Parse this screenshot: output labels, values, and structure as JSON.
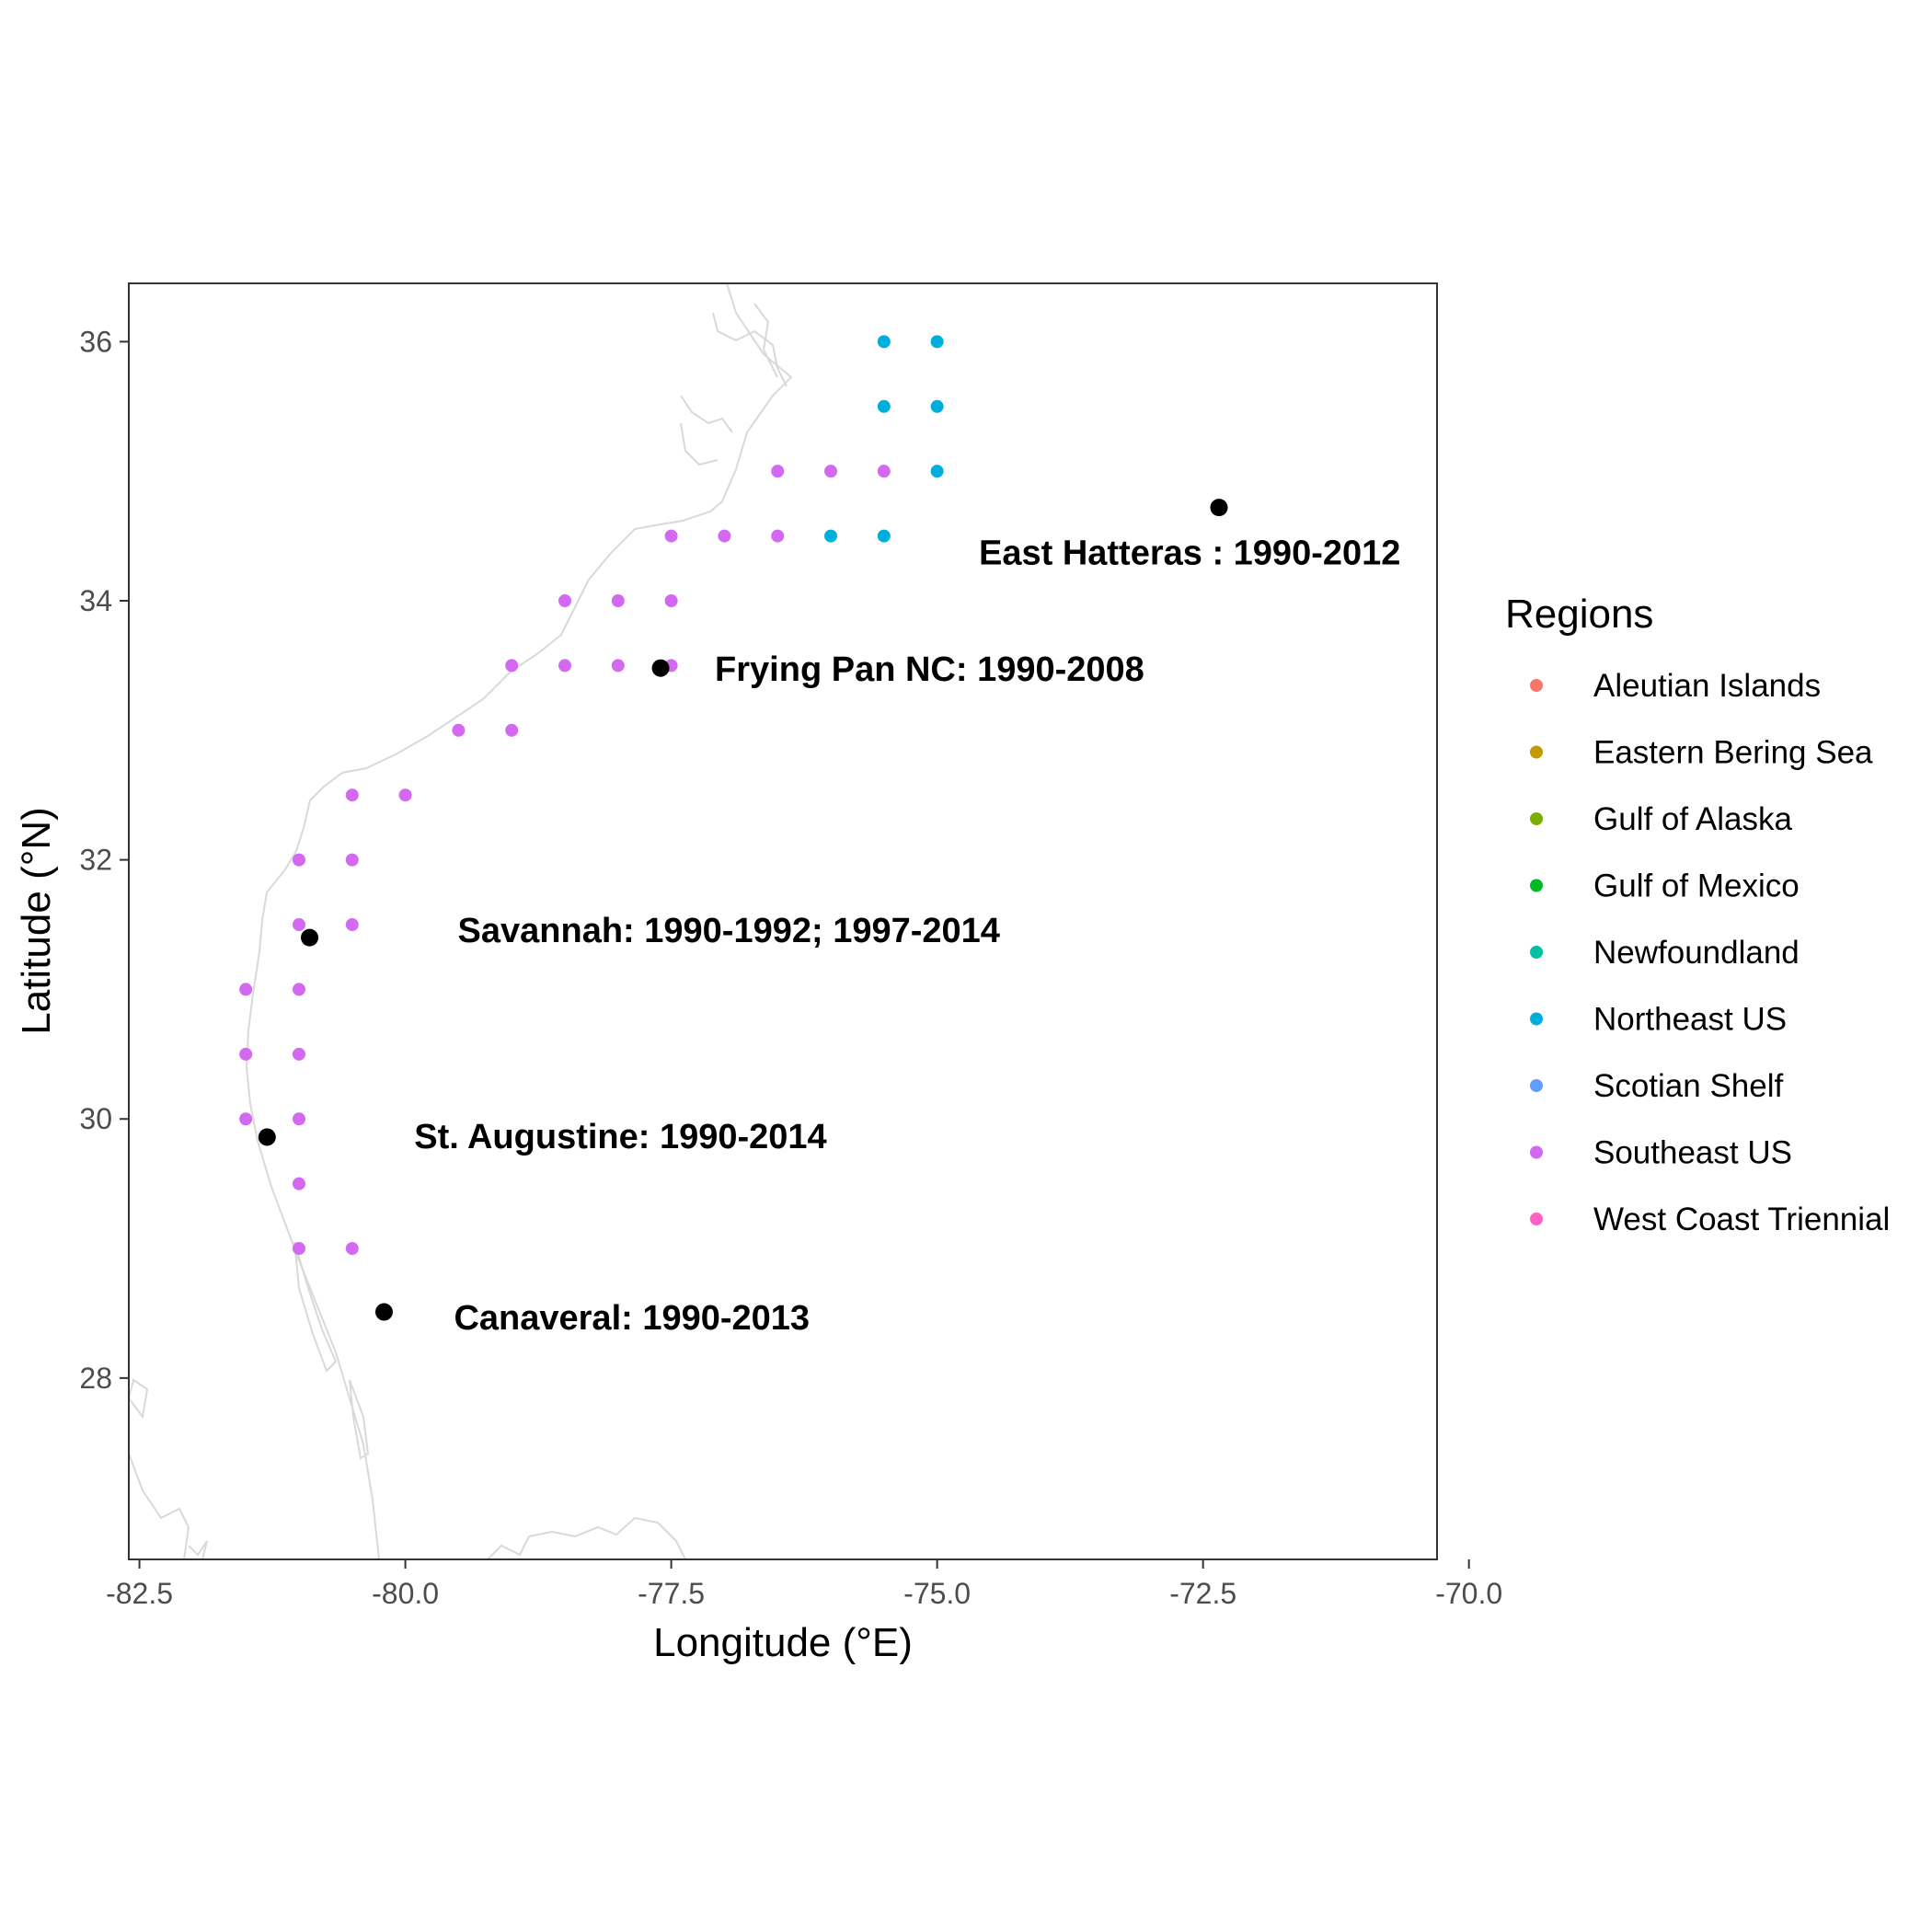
{
  "chart_data": {
    "type": "scatter",
    "xlabel": "Longitude (°E)",
    "ylabel": "Latitude (°N)",
    "xlim": [
      -82.6,
      -70.3
    ],
    "ylim": [
      26.6,
      36.45
    ],
    "x_ticks": [
      -82.5,
      -80.0,
      -77.5,
      -75.0,
      -72.5,
      -70.0
    ],
    "x_tick_labels": [
      "-82.5",
      "-80.0",
      "-77.5",
      "-75.0",
      "-72.5",
      "-70.0"
    ],
    "y_ticks": [
      28,
      30,
      32,
      34,
      36
    ],
    "y_tick_labels": [
      "28",
      "30",
      "32",
      "34",
      "36"
    ],
    "grid": false,
    "legend": {
      "title": "Regions",
      "placement": "right",
      "entries": [
        {
          "name": "Aleutian Islands",
          "color": "#F8766D"
        },
        {
          "name": "Eastern Bering Sea",
          "color": "#C49A00"
        },
        {
          "name": "Gulf of Alaska",
          "color": "#7CAE00"
        },
        {
          "name": "Gulf of Mexico",
          "color": "#00B928"
        },
        {
          "name": "Newfoundland",
          "color": "#00BFA4"
        },
        {
          "name": "Northeast US",
          "color": "#00AEDB"
        },
        {
          "name": "Scotian Shelf",
          "color": "#619CFF"
        },
        {
          "name": "Southeast US",
          "color": "#D369F0"
        },
        {
          "name": "West Coast Triennial",
          "color": "#FF61C3"
        }
      ]
    },
    "series": [
      {
        "name": "Northeast US",
        "color": "#00AEDB",
        "points": [
          [
            -75.5,
            36.0
          ],
          [
            -75.0,
            36.0
          ],
          [
            -75.5,
            35.5
          ],
          [
            -75.0,
            35.5
          ],
          [
            -75.0,
            35.0
          ],
          [
            -76.0,
            34.5
          ],
          [
            -75.5,
            34.5
          ]
        ]
      },
      {
        "name": "Southeast US",
        "color": "#D369F0",
        "points": [
          [
            -76.5,
            35.0
          ],
          [
            -76.0,
            35.0
          ],
          [
            -75.5,
            35.0
          ],
          [
            -77.5,
            34.5
          ],
          [
            -77.0,
            34.5
          ],
          [
            -76.5,
            34.5
          ],
          [
            -78.5,
            34.0
          ],
          [
            -78.0,
            34.0
          ],
          [
            -77.5,
            34.0
          ],
          [
            -79.0,
            33.5
          ],
          [
            -78.5,
            33.5
          ],
          [
            -78.0,
            33.5
          ],
          [
            -77.5,
            33.5
          ],
          [
            -79.5,
            33.0
          ],
          [
            -79.0,
            33.0
          ],
          [
            -80.5,
            32.5
          ],
          [
            -80.0,
            32.5
          ],
          [
            -81.0,
            32.0
          ],
          [
            -80.5,
            32.0
          ],
          [
            -81.0,
            31.5
          ],
          [
            -80.5,
            31.5
          ],
          [
            -81.5,
            31.0
          ],
          [
            -81.0,
            31.0
          ],
          [
            -81.5,
            30.5
          ],
          [
            -81.0,
            30.5
          ],
          [
            -81.5,
            30.0
          ],
          [
            -81.0,
            30.0
          ],
          [
            -81.0,
            29.5
          ],
          [
            -81.0,
            29.0
          ],
          [
            -80.5,
            29.0
          ]
        ]
      }
    ],
    "sites": [
      {
        "label": "East Hatteras : 1990-2012",
        "lon": -72.35,
        "lat": 34.72
      },
      {
        "label": "Frying Pan NC: 1990-2008",
        "lon": -77.6,
        "lat": 33.48
      },
      {
        "label": "Savannah: 1990-1992; 1997-2014",
        "lon": -80.9,
        "lat": 31.4
      },
      {
        "label": "St. Augustine: 1990-2014",
        "lon": -81.3,
        "lat": 29.86
      },
      {
        "label": "Canaveral: 1990-2013",
        "lon": -80.2,
        "lat": 28.51
      }
    ],
    "colors": {
      "site_point": "#000000",
      "coastline": "#d9d9d9"
    }
  }
}
